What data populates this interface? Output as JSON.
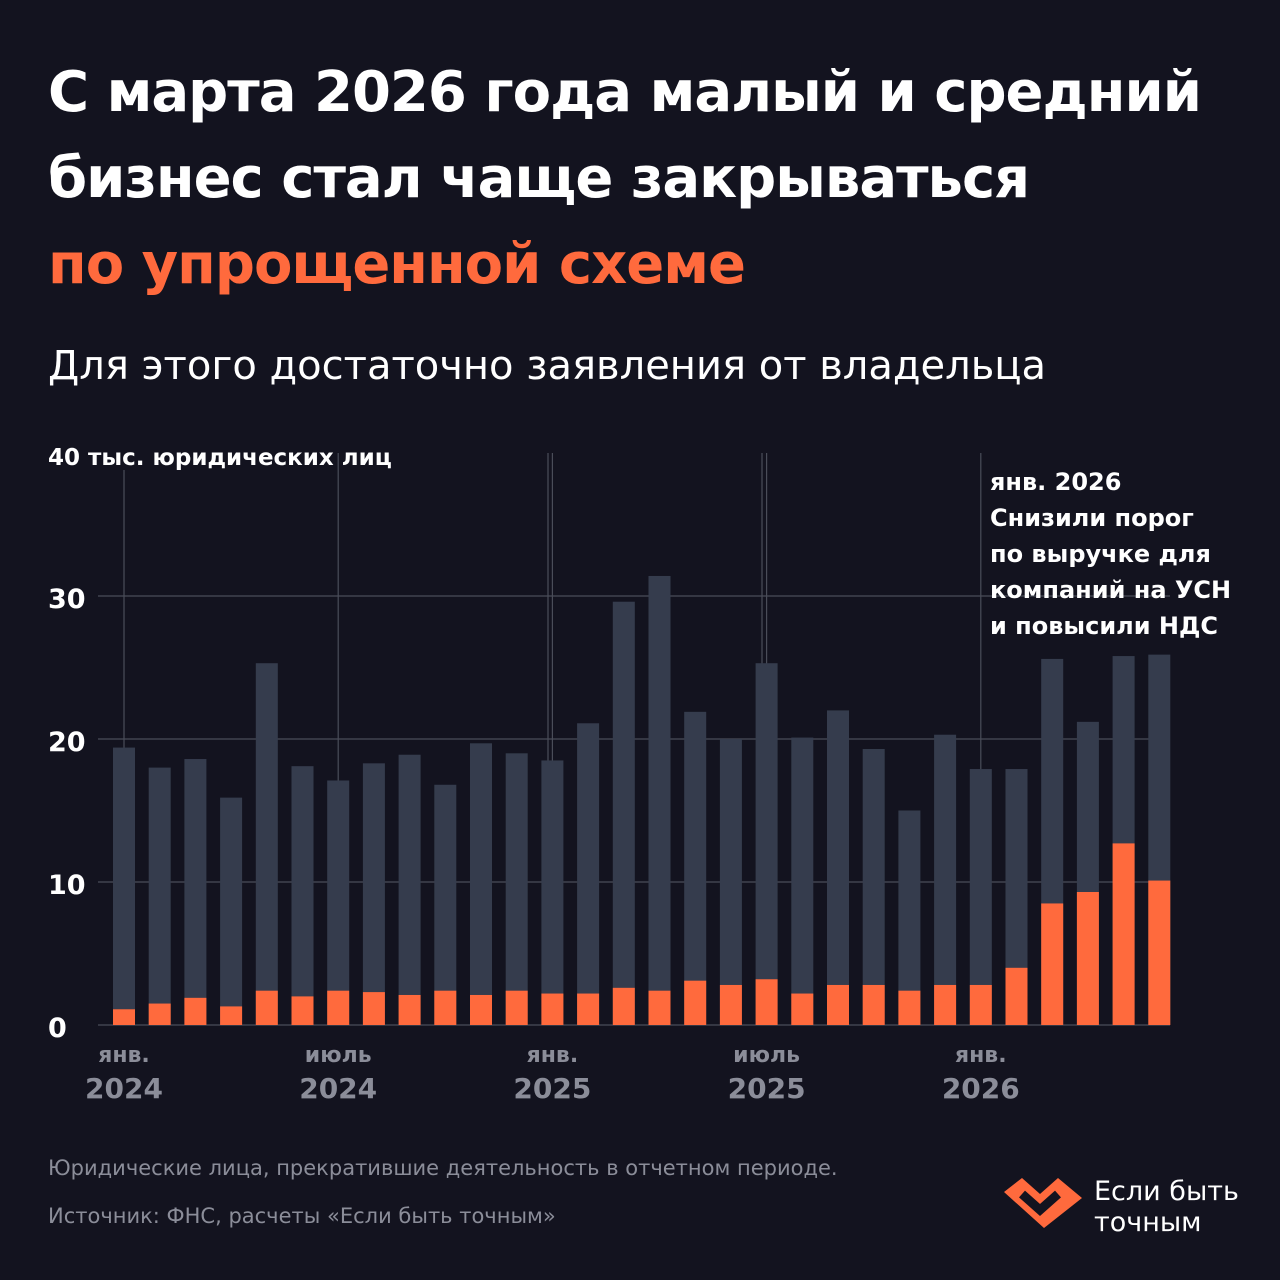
{
  "headline": {
    "line1": "С марта 2026 года малый и средний",
    "line2": "бизнес стал чаще закрываться",
    "line3": "по упрощенной схеме"
  },
  "subtitle": "Для этого достаточно заявления от владельца",
  "colors": {
    "background": "#13131f",
    "accent": "#ff6a3d",
    "bar_total": "#353c4d",
    "grid": "#4a4d59",
    "muted_text": "#8b8d99"
  },
  "chart_data": {
    "type": "bar",
    "stacked": true,
    "unit_label": "тыс. юридических лиц",
    "ylim": [
      0,
      40
    ],
    "yticks": [
      0,
      10,
      20,
      30,
      40
    ],
    "grid": true,
    "x_tick_labels": [
      {
        "month": "янв.",
        "year": "2024",
        "index": 0
      },
      {
        "month": "июль",
        "year": "2024",
        "index": 6
      },
      {
        "month": "янв.",
        "year": "2025",
        "index": 12
      },
      {
        "month": "июль",
        "year": "2025",
        "index": 18
      },
      {
        "month": "янв.",
        "year": "2026",
        "index": 24
      }
    ],
    "series": [
      {
        "key": "simplified",
        "color": "#ff6a3d",
        "values": [
          1.1,
          1.5,
          1.9,
          1.3,
          2.4,
          2.0,
          2.4,
          2.3,
          2.1,
          2.4,
          2.1,
          2.4,
          2.2,
          2.2,
          2.6,
          2.4,
          3.1,
          2.8,
          3.2,
          2.2,
          2.8,
          2.8,
          2.4,
          2.8,
          2.8,
          4.0,
          8.5,
          9.3,
          12.7,
          10.1
        ]
      },
      {
        "key": "total",
        "color": "#353c4d",
        "values": [
          19.4,
          18.0,
          18.6,
          15.9,
          25.3,
          18.1,
          17.1,
          18.3,
          18.9,
          16.8,
          19.7,
          19.0,
          18.5,
          21.1,
          29.6,
          31.4,
          21.9,
          20.0,
          25.3,
          20.1,
          22.0,
          19.3,
          15.0,
          20.3,
          17.9,
          17.9,
          25.6,
          21.2,
          25.8,
          25.9
        ]
      }
    ],
    "annotation": {
      "index": 24,
      "lines": [
        "янв. 2026",
        "Снизили порог",
        "по выручке для",
        "компаний на УСН",
        "и повысили НДС"
      ]
    }
  },
  "footnotes": [
    "Юридические лица, прекратившие деятельность в отчетном периоде.",
    "Источник: ФНС, расчеты «Если быть точным»"
  ],
  "logo": {
    "icon": "check-heart-icon",
    "line1": "Если быть",
    "line2": "точным"
  }
}
